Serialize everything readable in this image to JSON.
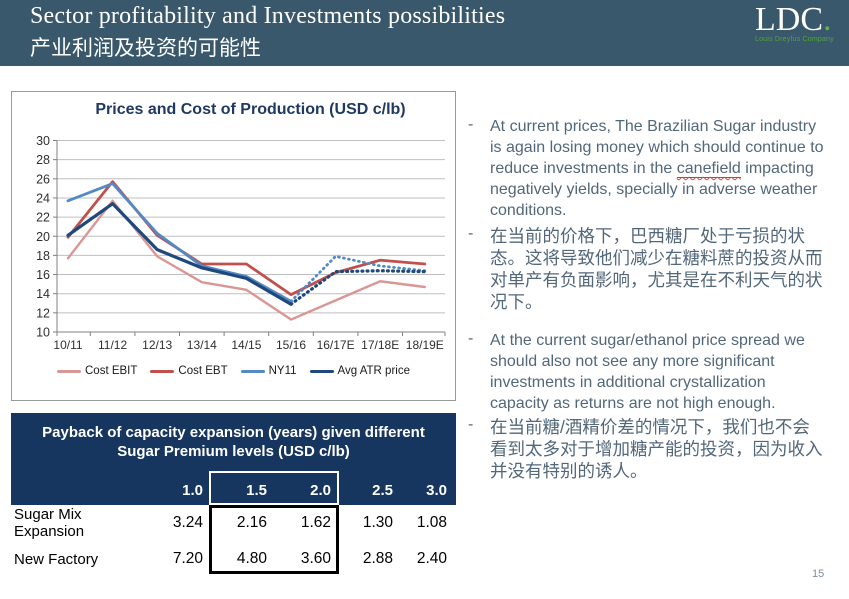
{
  "slide": {
    "title": "Sector profitability and Investments possibilities",
    "subtitle_cn": "产业利润及投资的可能性",
    "page_number": "15"
  },
  "logo": {
    "text": "LDC",
    "dot": ".",
    "tagline": "Louis Dreyfus Company",
    "accent_green": "#5CB93E"
  },
  "chart_data": {
    "type": "line",
    "title": "Prices and Cost of Production (USD c/lb)",
    "categories": [
      "10/11",
      "11/12",
      "12/13",
      "13/14",
      "14/15",
      "15/16",
      "16/17E",
      "17/18E",
      "18/19E"
    ],
    "ylim": [
      10,
      30
    ],
    "ytick_step": 2,
    "yticks": [
      10,
      12,
      14,
      16,
      18,
      20,
      22,
      24,
      26,
      28,
      30
    ],
    "grid": true,
    "legend_position": "bottom",
    "gridline_color": "#BFBFBF",
    "axis_color": "#808080",
    "series": [
      {
        "name": "Cost EBIT",
        "color": "#D99694",
        "dash_from": null,
        "values": [
          17.7,
          23.7,
          17.9,
          15.2,
          14.4,
          11.3,
          13.3,
          15.3,
          14.7
        ]
      },
      {
        "name": "Cost EBT",
        "color": "#C0504D",
        "dash_from": null,
        "values": [
          19.9,
          25.7,
          20.1,
          17.1,
          17.1,
          13.9,
          16.2,
          17.5,
          17.1
        ]
      },
      {
        "name": "NY11",
        "color": "#5389C5",
        "dash_from": 5,
        "values": [
          23.7,
          25.5,
          20.3,
          16.9,
          15.8,
          13.2,
          17.9,
          16.9,
          16.4
        ]
      },
      {
        "name": "Avg ATR price",
        "color": "#1F497D",
        "dash_from": 5,
        "values": [
          20.1,
          23.4,
          18.6,
          16.7,
          15.6,
          12.9,
          16.3,
          16.4,
          16.3
        ]
      }
    ]
  },
  "payback_table": {
    "title_line1": "Payback of capacity expansion (years) given different",
    "title_line2": "Sugar Premium levels (USD c/lb)",
    "header_color": "#16355F",
    "columns": [
      "1.0",
      "1.5",
      "2.0",
      "2.5",
      "3.0"
    ],
    "rows": [
      {
        "label": "Sugar Mix Expansion",
        "values": [
          "3.24",
          "2.16",
          "1.62",
          "1.30",
          "1.08"
        ]
      },
      {
        "label": "New Factory",
        "values": [
          "7.20",
          "4.80",
          "3.60",
          "2.88",
          "2.40"
        ]
      }
    ]
  },
  "notes": {
    "text_color": "#52677A",
    "bullet_marker": "-",
    "bullets": [
      {
        "lang": "en",
        "text_before": "At current prices, The Brazilian Sugar industry is again losing money which should continue to reduce investments in the ",
        "highlight_word": "canefield",
        "text_after": " impacting negatively yields, specially in adverse weather conditions."
      },
      {
        "lang": "cn",
        "text": "在当前的价格下，巴西糖厂处于亏损的状态。这将导致他们减少在糖料蔗的投资从而对单产有负面影响，尤其是在不利天气的状况下。"
      },
      {
        "lang": "en",
        "text": "At the current sugar/ethanol price spread we should also not see any more significant investments in additional crystallization capacity as returns are not high enough."
      },
      {
        "lang": "cn",
        "text": "在当前糖/酒精价差的情况下，我们也不会看到太多对于增加糖产能的投资，因为收入并没有特别的诱人。"
      }
    ]
  }
}
